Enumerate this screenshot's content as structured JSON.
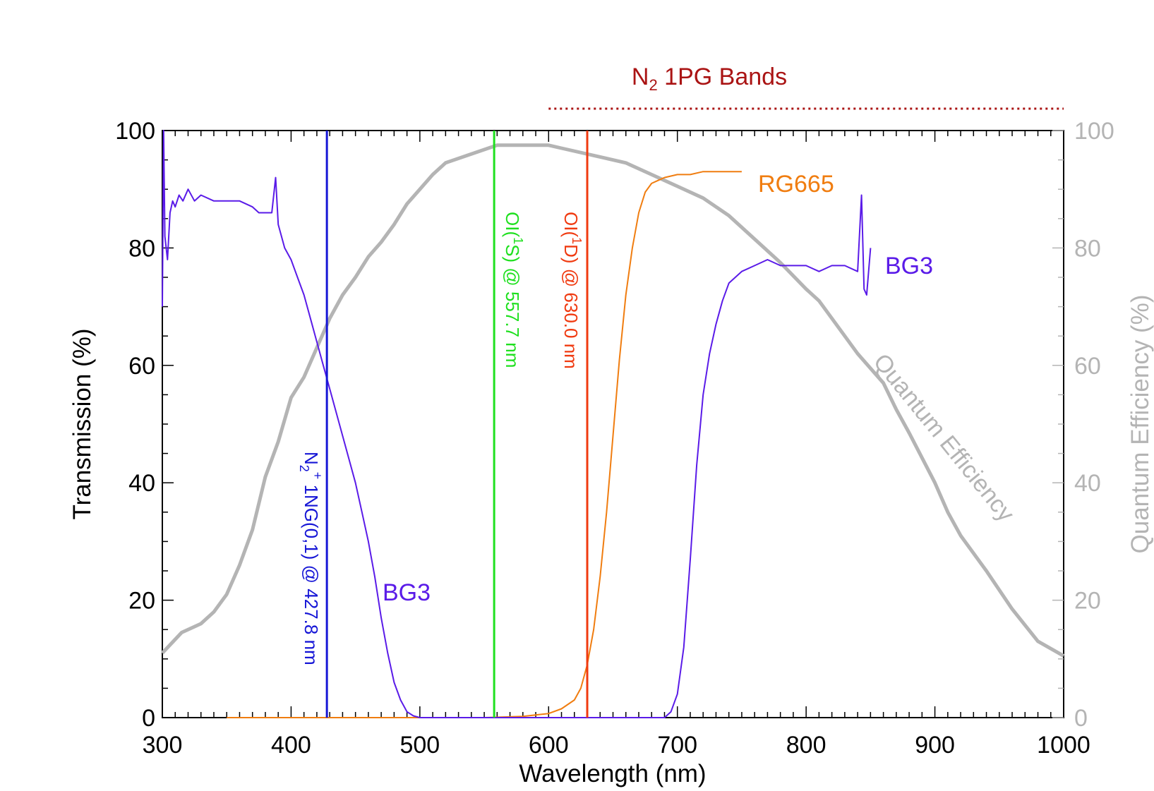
{
  "chart_data": {
    "type": "line",
    "xlabel": "Wavelength (nm)",
    "ylabel": "Transmission (%)",
    "y2label": "Quantum Efficiency (%)",
    "xlim": [
      300,
      1000
    ],
    "ylim": [
      0,
      100
    ],
    "y2lim": [
      0,
      100
    ],
    "x_ticks": [
      "300",
      "400",
      "500",
      "600",
      "700",
      "800",
      "900",
      "1000"
    ],
    "y_ticks": [
      "0",
      "20",
      "40",
      "60",
      "80",
      "100"
    ],
    "y2_ticks": [
      "0",
      "20",
      "40",
      "60",
      "80",
      "100"
    ],
    "grid": false,
    "colors": {
      "bg3": "#5a1be8",
      "rg665": "#f07d10",
      "qe": "#b4b4b4",
      "n2plus": "#1616d6",
      "ol1s": "#1fe01f",
      "ol1d": "#f03a10",
      "n2bands": "#aa1414"
    },
    "band_label": {
      "main": "N",
      "sub": "2",
      "rest": " 1PG Bands"
    },
    "n2_bands_range": [
      600,
      1000
    ],
    "series": [
      {
        "key": "qe",
        "name": "Quantum Efficiency",
        "x": [
          300,
          315,
          330,
          340,
          350,
          360,
          370,
          380,
          390,
          400,
          410,
          420,
          430,
          440,
          450,
          460,
          470,
          480,
          490,
          500,
          510,
          520,
          540,
          560,
          580,
          600,
          610,
          640,
          660,
          680,
          700,
          720,
          740,
          760,
          780,
          800,
          810,
          820,
          840,
          860,
          870,
          880,
          900,
          910,
          920,
          940,
          960,
          980,
          1000
        ],
        "y": [
          11,
          14.5,
          16,
          18,
          21,
          26,
          32,
          41,
          47,
          54.5,
          58,
          63,
          68,
          72,
          75,
          78.5,
          81,
          84,
          87.5,
          90,
          92.5,
          94.5,
          96,
          97.5,
          97.5,
          97.5,
          97,
          95.5,
          94.5,
          92.5,
          90.5,
          88.5,
          85.5,
          81.5,
          77.5,
          73,
          71,
          68,
          62,
          57,
          52.5,
          48.5,
          40,
          35,
          31,
          25,
          18.5,
          13,
          10.5
        ]
      },
      {
        "key": "bg3",
        "name": "BG3",
        "x": [
          300,
          301,
          302,
          304,
          306,
          308,
          310,
          313,
          316,
          320,
          325,
          330,
          340,
          350,
          360,
          370,
          375,
          380,
          385,
          388,
          390,
          395,
          400,
          405,
          410,
          415,
          420,
          425,
          430,
          435,
          440,
          445,
          450,
          455,
          460,
          465,
          470,
          475,
          480,
          485,
          490,
          495,
          500,
          550,
          600,
          650,
          690,
          695,
          700,
          705,
          710,
          715,
          720,
          725,
          730,
          735,
          740,
          745,
          750,
          760,
          770,
          780,
          790,
          800,
          810,
          820,
          830,
          840,
          843,
          845,
          847,
          850
        ],
        "y": [
          70,
          100,
          82,
          78,
          86,
          88,
          87,
          89,
          88,
          90,
          88,
          89,
          88,
          88,
          88,
          87,
          86,
          86,
          86,
          92,
          84,
          80,
          78,
          75,
          72,
          68,
          64,
          60,
          56,
          52,
          48,
          44,
          40,
          35,
          30,
          24,
          17,
          11,
          6,
          3,
          1,
          0.3,
          0,
          0,
          0,
          0,
          0,
          1,
          4,
          12,
          27,
          43,
          55,
          62,
          67,
          71,
          74,
          75,
          76,
          77,
          78,
          77,
          77,
          77,
          76,
          77,
          77,
          76,
          89,
          73,
          72,
          80
        ]
      },
      {
        "key": "rg665",
        "name": "RG665",
        "x": [
          350,
          400,
          450,
          500,
          550,
          580,
          600,
          610,
          620,
          625,
          630,
          635,
          640,
          645,
          650,
          655,
          660,
          665,
          670,
          675,
          680,
          685,
          690,
          700,
          710,
          720,
          730,
          740,
          750
        ],
        "y": [
          0,
          0,
          0,
          0,
          0,
          0.2,
          0.7,
          1.5,
          3,
          5,
          9,
          15,
          24,
          35,
          48,
          61,
          72,
          80,
          86,
          89.5,
          91,
          91.5,
          92,
          92.5,
          92.5,
          93,
          93,
          93,
          93
        ]
      }
    ],
    "lines": [
      {
        "key": "n2plus",
        "x": 427.8,
        "label_a": "N",
        "label_sub": "2",
        "label_sup": "+",
        "label_rest": " 1NG(0,1) @ 427.8 nm"
      },
      {
        "key": "ol1s",
        "x": 557.7,
        "label_a": "OI(",
        "label_sup": "1",
        "label_rest": "S) @ 557.7 nm"
      },
      {
        "key": "ol1d",
        "x": 630.0,
        "label_a": "OI(",
        "label_sup": "1",
        "label_rest": "D) @ 630.0 nm"
      }
    ],
    "annotations": {
      "rg665": "RG665",
      "bg3_left": "BG3",
      "bg3_right": "BG3",
      "qe": "Quantum Efficiency"
    }
  }
}
